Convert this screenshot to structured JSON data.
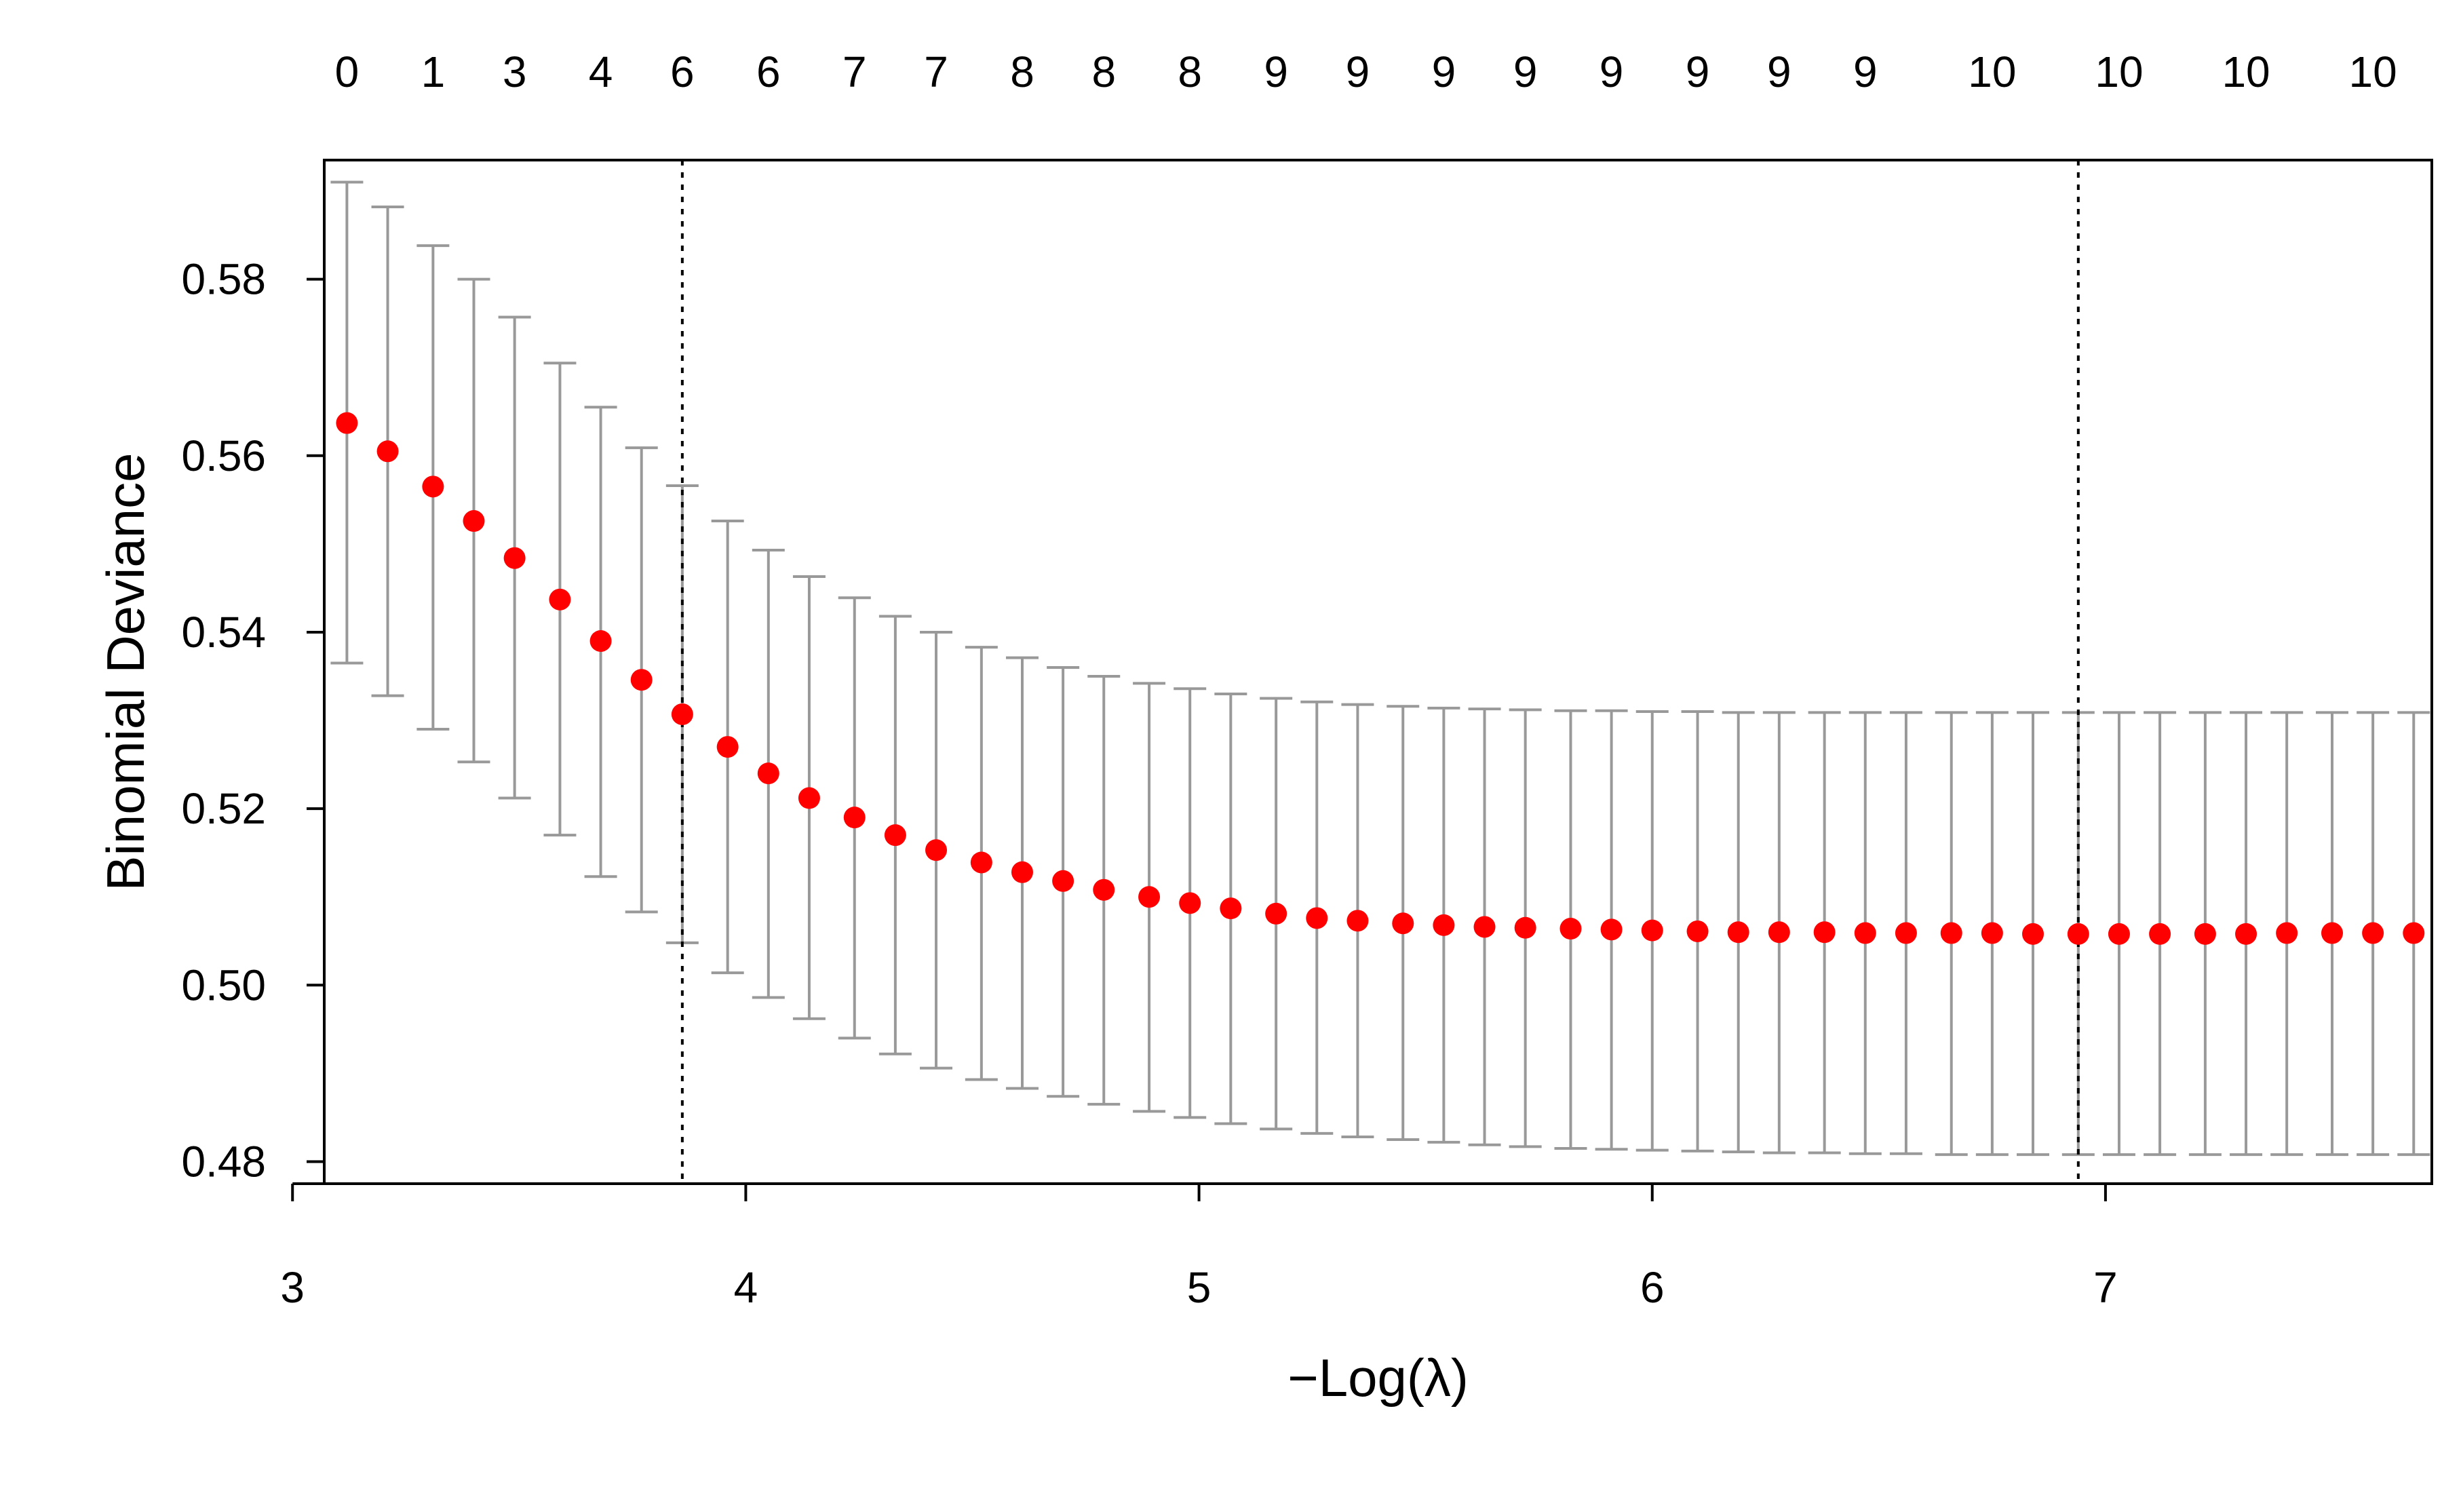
{
  "chart_data": {
    "type": "scatter",
    "subtype": "cross-validation error bar plot",
    "title": "",
    "xlabel": "−Log(λ)",
    "ylabel": "Binomial Deviance",
    "xlim": [
      3.07,
      7.72
    ],
    "ylim": [
      0.4775,
      0.5935
    ],
    "x_ticks": [
      3,
      4,
      5,
      6,
      7
    ],
    "y_ticks": [
      0.48,
      0.5,
      0.52,
      0.54,
      0.56,
      0.58
    ],
    "x_tick_labels": [
      "3",
      "4",
      "5",
      "6",
      "7"
    ],
    "y_tick_labels": [
      "0.48",
      "0.50",
      "0.52",
      "0.54",
      "0.56",
      "0.58"
    ],
    "grid": false,
    "legend": "none",
    "point_color": "#ff0000",
    "errorbar_color": "#999999",
    "reference_line_color": "#000000",
    "top_axis": {
      "positions": [
        3.12,
        3.31,
        3.49,
        3.68,
        3.86,
        4.05,
        4.24,
        4.42,
        4.61,
        4.79,
        4.98,
        5.17,
        5.35,
        5.54,
        5.72,
        5.91,
        6.1,
        6.28,
        6.47,
        6.75,
        7.03,
        7.31,
        7.59
      ],
      "labels": [
        "0",
        "1",
        "3",
        "4",
        "6",
        "6",
        "7",
        "7",
        "8",
        "8",
        "8",
        "9",
        "9",
        "9",
        "9",
        "9",
        "9",
        "9",
        "9",
        "10",
        "10",
        "10",
        "10"
      ]
    },
    "reference_lines_x": [
      3.86,
      6.94
    ],
    "series": [
      {
        "x": [
          3.12,
          3.21,
          3.31,
          3.4,
          3.49,
          3.59,
          3.68,
          3.77,
          3.86,
          3.96,
          4.05,
          4.14,
          4.24,
          4.33,
          4.42,
          4.52,
          4.61,
          4.7,
          4.79,
          4.89,
          4.98,
          5.07,
          5.17,
          5.26,
          5.35,
          5.45,
          5.54,
          5.63,
          5.72,
          5.82,
          5.91,
          6.0,
          6.1,
          6.19,
          6.28,
          6.38,
          6.47,
          6.56,
          6.66,
          6.75,
          6.84,
          6.94,
          7.03,
          7.12,
          7.22,
          7.31,
          7.4,
          7.5,
          7.59,
          7.68
        ],
        "y": [
          0.5637,
          0.5605,
          0.5565,
          0.5526,
          0.5484,
          0.5437,
          0.539,
          0.5346,
          0.5307,
          0.527,
          0.524,
          0.5212,
          0.519,
          0.517,
          0.5153,
          0.5139,
          0.5128,
          0.5118,
          0.5108,
          0.51,
          0.5093,
          0.5087,
          0.5081,
          0.5076,
          0.5073,
          0.507,
          0.5068,
          0.5066,
          0.5065,
          0.5064,
          0.5063,
          0.5062,
          0.5061,
          0.506,
          0.506,
          0.506,
          0.5059,
          0.5059,
          0.5059,
          0.5059,
          0.5058,
          0.5058,
          0.5058,
          0.5058,
          0.5058,
          0.5058,
          0.5059,
          0.5059,
          0.5059,
          0.5059
        ],
        "lower": [
          0.5365,
          0.5328,
          0.529,
          0.5253,
          0.5212,
          0.517,
          0.5123,
          0.5083,
          0.5048,
          0.5014,
          0.4986,
          0.4962,
          0.494,
          0.4922,
          0.4906,
          0.4893,
          0.4883,
          0.4874,
          0.4865,
          0.4857,
          0.485,
          0.4843,
          0.4837,
          0.4832,
          0.4828,
          0.4825,
          0.4822,
          0.4819,
          0.4817,
          0.4815,
          0.4814,
          0.4813,
          0.4812,
          0.4811,
          0.481,
          0.481,
          0.4809,
          0.4809,
          0.4808,
          0.4808,
          0.4808,
          0.4808,
          0.4808,
          0.4808,
          0.4808,
          0.4808,
          0.4808,
          0.4808,
          0.4808,
          0.4808
        ],
        "upper": [
          0.591,
          0.5882,
          0.5838,
          0.58,
          0.5757,
          0.5705,
          0.5655,
          0.5609,
          0.5566,
          0.5526,
          0.5493,
          0.5463,
          0.5439,
          0.5418,
          0.54,
          0.5383,
          0.5371,
          0.536,
          0.535,
          0.5342,
          0.5336,
          0.533,
          0.5325,
          0.5321,
          0.5318,
          0.5316,
          0.5314,
          0.5313,
          0.5312,
          0.5311,
          0.5311,
          0.531,
          0.531,
          0.5309,
          0.5309,
          0.5309,
          0.5309,
          0.5309,
          0.5309,
          0.5309,
          0.5309,
          0.5309,
          0.5309,
          0.5309,
          0.5309,
          0.5309,
          0.5309,
          0.5309,
          0.5309,
          0.5309
        ]
      }
    ]
  }
}
